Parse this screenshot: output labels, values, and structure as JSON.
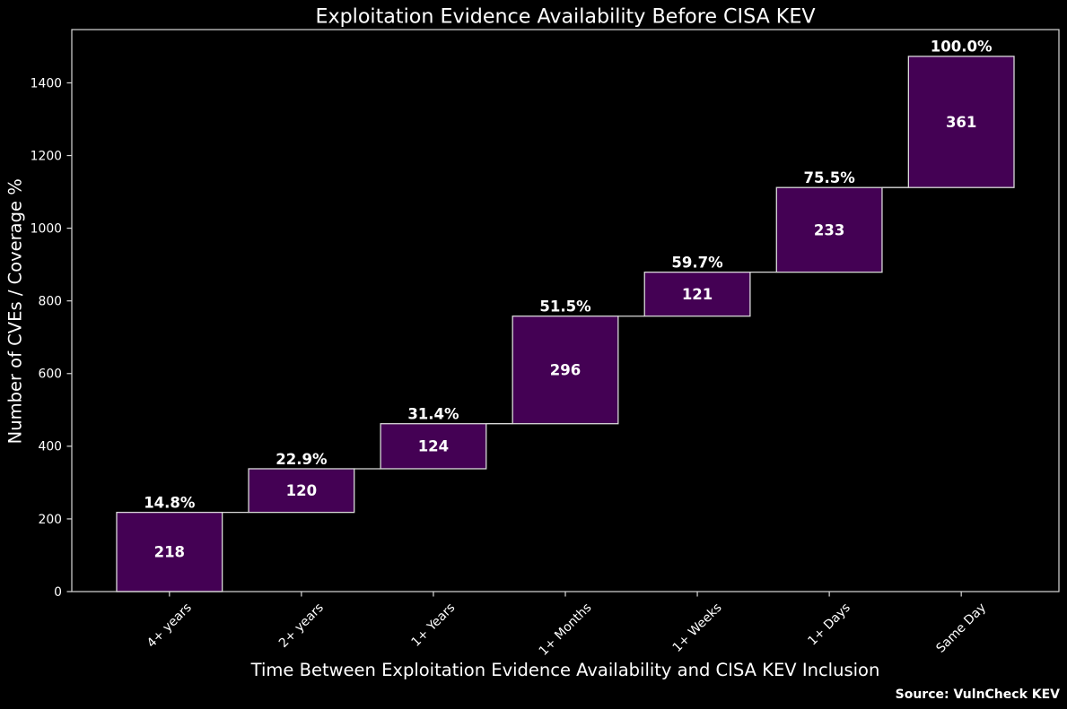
{
  "chart_data": {
    "type": "bar",
    "variant": "waterfall",
    "title": "Exploitation Evidence Availability Before CISA KEV",
    "xlabel": "Time Between Exploitation Evidence Availability and CISA KEV Inclusion",
    "ylabel": "Number of CVEs / Coverage %",
    "source": "Source: VulnCheck KEV",
    "categories": [
      "4+ years",
      "2+ years",
      "1+ Years",
      "1+ Months",
      "1+ Weeks",
      "1+ Days",
      "Same Day"
    ],
    "values": [
      218,
      120,
      124,
      296,
      121,
      233,
      361
    ],
    "percent_labels": [
      "14.8%",
      "22.9%",
      "31.4%",
      "51.5%",
      "59.7%",
      "75.5%",
      "100.0%"
    ],
    "yticks": [
      0,
      200,
      400,
      600,
      800,
      1000,
      1200,
      1400
    ],
    "ylim": [
      0,
      1546.65
    ],
    "grid": "off",
    "legend": "none",
    "colors": {
      "background": "#000000",
      "bar_fill": "#440154",
      "bar_edge": "#d9d9d9",
      "axis": "#d9d9d9",
      "text": "#ffffff"
    }
  }
}
